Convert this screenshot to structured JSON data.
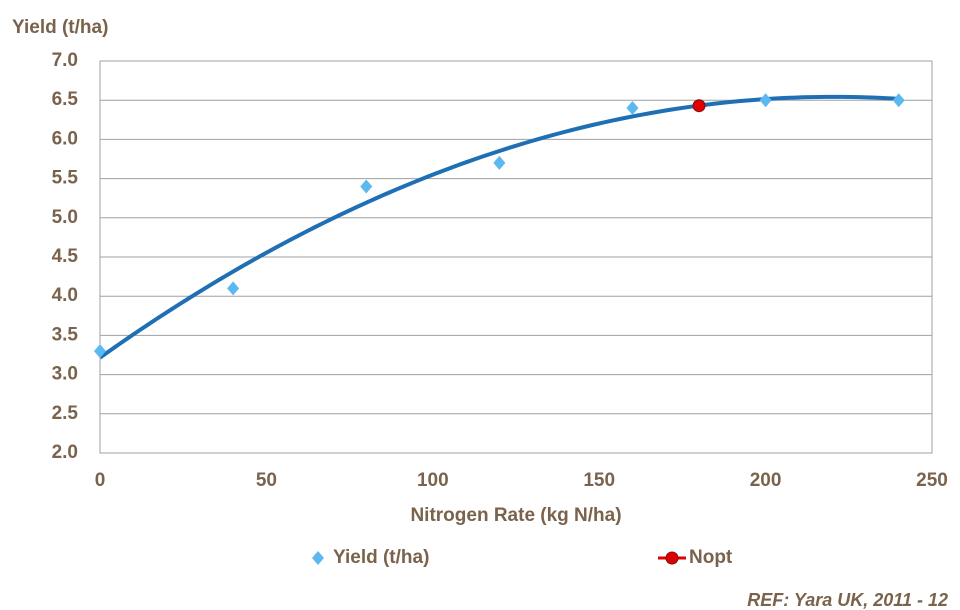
{
  "chart_data": {
    "type": "scatter",
    "x_label": "Nitrogen Rate (kg N/ha)",
    "y_label": "Yield (t/ha)",
    "source": "REF: Yara UK, 2011 - 12",
    "xlim": [
      0,
      250
    ],
    "xticks": [
      0,
      50,
      100,
      150,
      200,
      250
    ],
    "ylim": [
      2.0,
      7.0
    ],
    "yticks": [
      {
        "value": 2.0,
        "label": "2.0"
      },
      {
        "value": 2.5,
        "label": "2.5"
      },
      {
        "value": 3.0,
        "label": "3.0"
      },
      {
        "value": 3.5,
        "label": "3.5"
      },
      {
        "value": 4.0,
        "label": "4.0"
      },
      {
        "value": 4.5,
        "label": "4.5"
      },
      {
        "value": 5.0,
        "label": "5.0"
      },
      {
        "value": 5.5,
        "label": "5.5"
      },
      {
        "value": 6.0,
        "label": "6.0"
      },
      {
        "value": 6.5,
        "label": "6.5"
      },
      {
        "value": 7.0,
        "label": "7.0"
      }
    ],
    "grid": true,
    "series": [
      {
        "name": "Yield (t/ha)",
        "color": "#5cb8f0",
        "marker": "diamond",
        "x": [
          0,
          40,
          80,
          120,
          160,
          200,
          240
        ],
        "values": [
          3.3,
          4.1,
          5.4,
          5.7,
          6.4,
          6.5,
          6.5
        ],
        "trendline": {
          "order": 2,
          "color": "#1f6fb5"
        }
      },
      {
        "name": "Nopt",
        "color": "#e00000",
        "marker": "circle",
        "x": [
          180
        ],
        "values": [
          6.43
        ]
      }
    ]
  }
}
